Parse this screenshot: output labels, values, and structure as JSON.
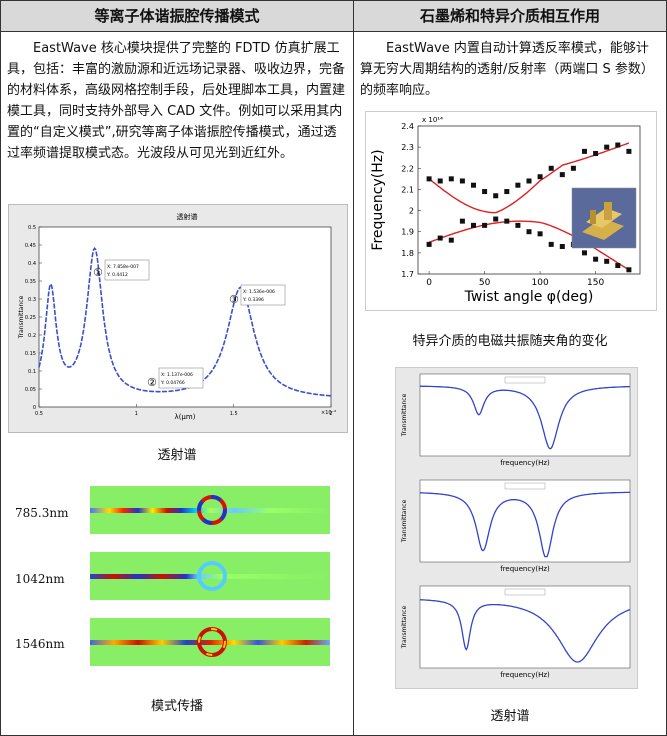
{
  "left": {
    "title": "等离子体谐振腔传播模式",
    "paragraph": "EastWave 核心模块提供了完整的 FDTD 仿真扩展工具，包括：丰富的激励源和近远场记录器、吸收边界，完备的材料体系，高级网格控制手段，后处理脚本工具，内置建模工具，同时支持外部导入 CAD 文件。例如可以采用其内置的“自定义模式”,研究等离子体谐振腔传播模式，通过透过率频谱提取模式态。光波段从可见光到近红外。",
    "spectrum_caption": "透射谱",
    "mode_caption": "模式传播",
    "mode_labels": [
      "785.3nm",
      "1042nm",
      "1546nm"
    ],
    "chart": {
      "title": "透射谱",
      "ylabel": "Transmittance",
      "xlabel": "λ(μm)",
      "xscale": "×10⁻⁶",
      "yticks": [
        "0.5",
        "0.45",
        "0.4",
        "0.35",
        "0.3",
        "0.25",
        "0.2",
        "0.15",
        "0.1",
        "0.05",
        "0"
      ],
      "xticks": [
        "0.5",
        "1",
        "1.5",
        "2"
      ],
      "markers": [
        {
          "num": "①",
          "text1": "X: 7.858e-007",
          "text2": "Y: 0.4412"
        },
        {
          "num": "②",
          "text1": "X: 1.137e-006",
          "text2": "Y: 0.04766"
        },
        {
          "num": "③",
          "text1": "X: 1.536e-006",
          "text2": "Y: 0.3396"
        }
      ]
    }
  },
  "right": {
    "title": "石墨烯和特异介质相互作用",
    "paragraph": "EastWave 内置自动计算透反率模式，能够计算无穷大周期结构的透射/反射率（两端口 S 参数）的频率响应。",
    "freq_caption": "特异介质的电磁共振随夹角的变化",
    "trans_caption": "透射谱",
    "freq_chart": {
      "ylabel": "Frequency(Hz)",
      "xlabel": "Twist angle φ(deg)",
      "exponent": "x 10¹⁴",
      "yticks": [
        "2.4",
        "2.3",
        "2.2",
        "2.1",
        "2",
        "1.9",
        "1.8",
        "1.7"
      ],
      "xticks": [
        "0",
        "50",
        "100",
        "150"
      ],
      "upper_points": [
        [
          0,
          2.15
        ],
        [
          10,
          2.14
        ],
        [
          20,
          2.15
        ],
        [
          30,
          2.14
        ],
        [
          40,
          2.12
        ],
        [
          50,
          2.09
        ],
        [
          60,
          2.07
        ],
        [
          70,
          2.09
        ],
        [
          80,
          2.12
        ],
        [
          90,
          2.14
        ],
        [
          100,
          2.16
        ],
        [
          110,
          2.2
        ],
        [
          120,
          2.17
        ],
        [
          130,
          2.2
        ],
        [
          140,
          2.28
        ],
        [
          150,
          2.27
        ],
        [
          160,
          2.3
        ],
        [
          170,
          2.31
        ],
        [
          180,
          2.28
        ]
      ],
      "lower_points": [
        [
          0,
          1.84
        ],
        [
          10,
          1.87
        ],
        [
          20,
          1.86
        ],
        [
          30,
          1.95
        ],
        [
          40,
          1.93
        ],
        [
          50,
          1.93
        ],
        [
          60,
          1.96
        ],
        [
          70,
          1.95
        ],
        [
          80,
          1.93
        ],
        [
          90,
          1.9
        ],
        [
          100,
          1.89
        ],
        [
          110,
          1.84
        ],
        [
          120,
          1.83
        ],
        [
          130,
          1.84
        ],
        [
          140,
          1.8
        ],
        [
          150,
          1.77
        ],
        [
          160,
          1.76
        ],
        [
          170,
          1.74
        ],
        [
          180,
          1.72
        ]
      ]
    },
    "trans_panels": [
      {
        "ylabel": "Transmittance",
        "xlabel": "frequency(Hz)"
      },
      {
        "ylabel": "Transmittance",
        "xlabel": "frequency(Hz)"
      },
      {
        "ylabel": "Transmittance",
        "xlabel": "frequency(Hz)"
      }
    ]
  }
}
